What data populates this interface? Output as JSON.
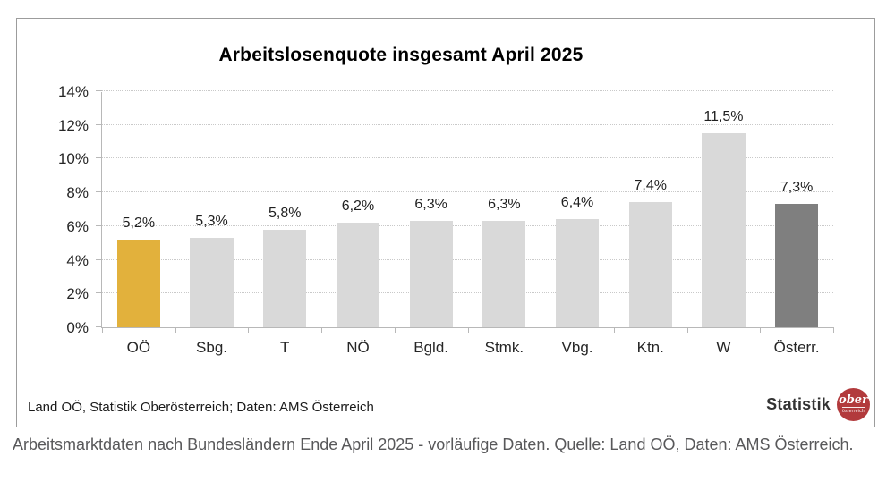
{
  "page": {
    "caption": "Arbeitsmarktdaten nach Bundesländern Ende April 2025 - vorläufige Daten. Quelle: Land OÖ, Daten: AMS Österreich."
  },
  "chart": {
    "title": "Arbeitslosenquote insgesamt April 2025",
    "source": "Land OÖ, Statistik Oberösterreich; Daten: AMS Österreich",
    "logo": {
      "text": "Statistik",
      "badge_text": "ober",
      "badge_subtext": "österreich"
    }
  },
  "chart_data": {
    "type": "bar",
    "title": "Arbeitslosenquote insgesamt April 2025",
    "categories": [
      "OÖ",
      "Sbg.",
      "T",
      "NÖ",
      "Bgld.",
      "Stmk.",
      "Vbg.",
      "Ktn.",
      "W",
      "Österr."
    ],
    "values": [
      5.2,
      5.3,
      5.8,
      6.2,
      6.3,
      6.3,
      6.4,
      7.4,
      11.5,
      7.3
    ],
    "value_labels": [
      "5,2%",
      "5,3%",
      "5,8%",
      "6,2%",
      "6,3%",
      "6,3%",
      "6,4%",
      "7,4%",
      "11,5%",
      "7,3%"
    ],
    "xlabel": "",
    "ylabel": "",
    "ylim": [
      0,
      14
    ],
    "ytick_step": 2,
    "ytick_labels": [
      "0%",
      "2%",
      "4%",
      "6%",
      "8%",
      "10%",
      "12%",
      "14%"
    ],
    "grid": "horizontal-dotted",
    "legend": "none",
    "colors": {
      "default_bar": "#d9d9d9",
      "highlight_bar": "#e2b13c",
      "dark_bar": "#7f7f7f",
      "highlight_index": 0,
      "dark_index": 9
    }
  }
}
